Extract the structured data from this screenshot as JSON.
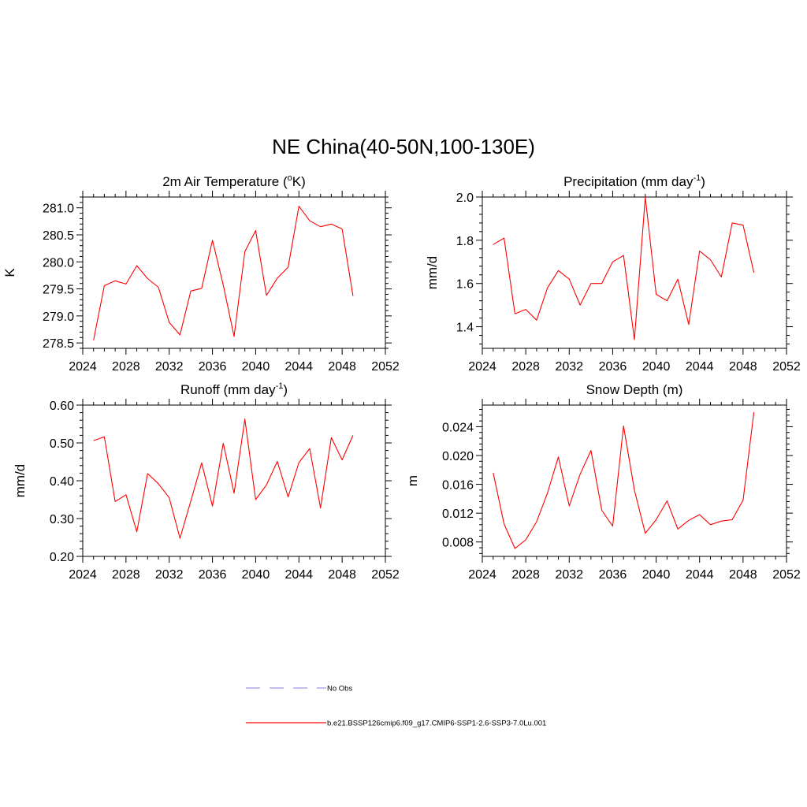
{
  "figure": {
    "title": "NE China(40-50N,100-130E)"
  },
  "legend": {
    "items": [
      {
        "label": "No Obs",
        "color": "#9a9ae6",
        "style": "dashed"
      },
      {
        "label": "b.e21.BSSP126cmip6.f09_g17.CMIP6-SSP1-2.6-SSP3-7.0Lu.001",
        "color": "#ff0000",
        "style": "solid"
      }
    ]
  },
  "chart_data": [
    {
      "id": "tas",
      "type": "line",
      "title": "2m Air Temperature (",
      "title_super": "o",
      "title_after": "K)",
      "ylabel": "K",
      "xlim": [
        2024,
        2052
      ],
      "xticks": [
        2024,
        2028,
        2032,
        2036,
        2040,
        2044,
        2048,
        2052
      ],
      "ylim": [
        278.4,
        281.2
      ],
      "yticks": [
        278.5,
        279.0,
        279.5,
        280.0,
        280.5,
        281.0
      ],
      "ytick_labels": [
        "278.5",
        "279.0",
        "279.5",
        "280.0",
        "280.5",
        "281.0"
      ],
      "series": [
        {
          "color": "#ff0000",
          "x": [
            2025,
            2026,
            2027,
            2028,
            2029,
            2030,
            2031,
            2032,
            2033,
            2034,
            2035,
            2036,
            2037,
            2038,
            2039,
            2040,
            2041,
            2042,
            2043,
            2044,
            2045,
            2046,
            2047,
            2048,
            2049
          ],
          "y": [
            278.55,
            279.56,
            279.65,
            279.59,
            279.93,
            279.69,
            279.53,
            278.88,
            278.65,
            279.46,
            279.51,
            280.4,
            279.57,
            278.62,
            280.19,
            280.58,
            279.38,
            279.7,
            279.9,
            281.03,
            280.76,
            280.65,
            280.7,
            280.61,
            279.37
          ]
        }
      ]
    },
    {
      "id": "pr",
      "type": "line",
      "title": "Precipitation (mm day",
      "title_super": "-1",
      "title_after": ")",
      "ylabel": "mm/d",
      "xlim": [
        2024,
        2052
      ],
      "xticks": [
        2024,
        2028,
        2032,
        2036,
        2040,
        2044,
        2048,
        2052
      ],
      "ylim": [
        1.3,
        2.0
      ],
      "yticks": [
        1.4,
        1.6,
        1.8,
        2.0
      ],
      "ytick_labels": [
        "1.4",
        "1.6",
        "1.8",
        "2.0"
      ],
      "series": [
        {
          "color": "#ff0000",
          "x": [
            2025,
            2026,
            2027,
            2028,
            2029,
            2030,
            2031,
            2032,
            2033,
            2034,
            2035,
            2036,
            2037,
            2038,
            2039,
            2040,
            2041,
            2042,
            2043,
            2044,
            2045,
            2046,
            2047,
            2048,
            2049
          ],
          "y": [
            1.78,
            1.81,
            1.46,
            1.48,
            1.43,
            1.58,
            1.66,
            1.62,
            1.5,
            1.6,
            1.6,
            1.7,
            1.73,
            1.34,
            2.0,
            1.55,
            1.52,
            1.62,
            1.41,
            1.75,
            1.71,
            1.63,
            1.88,
            1.87,
            1.65
          ]
        }
      ]
    },
    {
      "id": "runoff",
      "type": "line",
      "title": "Runoff (mm day",
      "title_super": "-1",
      "title_after": ")",
      "ylabel": "mm/d",
      "xlim": [
        2024,
        2052
      ],
      "xticks": [
        2024,
        2028,
        2032,
        2036,
        2040,
        2044,
        2048,
        2052
      ],
      "ylim": [
        0.2,
        0.6
      ],
      "yticks": [
        0.2,
        0.3,
        0.4,
        0.5,
        0.6
      ],
      "ytick_labels": [
        "0.20",
        "0.30",
        "0.40",
        "0.50",
        "0.60"
      ],
      "series": [
        {
          "color": "#ff0000",
          "x": [
            2025,
            2026,
            2027,
            2028,
            2029,
            2030,
            2031,
            2032,
            2033,
            2034,
            2035,
            2036,
            2037,
            2038,
            2039,
            2040,
            2041,
            2042,
            2043,
            2044,
            2045,
            2046,
            2047,
            2048,
            2049
          ],
          "y": [
            0.506,
            0.516,
            0.345,
            0.363,
            0.265,
            0.419,
            0.392,
            0.355,
            0.248,
            0.346,
            0.447,
            0.333,
            0.499,
            0.367,
            0.563,
            0.35,
            0.389,
            0.451,
            0.357,
            0.448,
            0.485,
            0.328,
            0.514,
            0.455,
            0.52
          ]
        }
      ]
    },
    {
      "id": "snowdepth",
      "type": "line",
      "title": "Snow Depth (m)",
      "title_super": "",
      "title_after": "",
      "ylabel": "m",
      "xlim": [
        2024,
        2052
      ],
      "xticks": [
        2024,
        2028,
        2032,
        2036,
        2040,
        2044,
        2048,
        2052
      ],
      "ylim": [
        0.006,
        0.027
      ],
      "yticks": [
        0.008,
        0.012,
        0.016,
        0.02,
        0.024
      ],
      "ytick_labels": [
        "0.008",
        "0.012",
        "0.016",
        "0.020",
        "0.024"
      ],
      "series": [
        {
          "color": "#ff0000",
          "x": [
            2025,
            2026,
            2027,
            2028,
            2029,
            2030,
            2031,
            2032,
            2033,
            2034,
            2035,
            2036,
            2037,
            2038,
            2039,
            2040,
            2041,
            2042,
            2043,
            2044,
            2045,
            2046,
            2047,
            2048,
            2049
          ],
          "y": [
            0.0176,
            0.0105,
            0.0071,
            0.0083,
            0.0108,
            0.0148,
            0.0198,
            0.013,
            0.0174,
            0.0207,
            0.0124,
            0.0102,
            0.0241,
            0.0152,
            0.0092,
            0.0111,
            0.0137,
            0.0098,
            0.011,
            0.0118,
            0.0104,
            0.0109,
            0.0111,
            0.0138,
            0.026
          ]
        }
      ]
    }
  ]
}
